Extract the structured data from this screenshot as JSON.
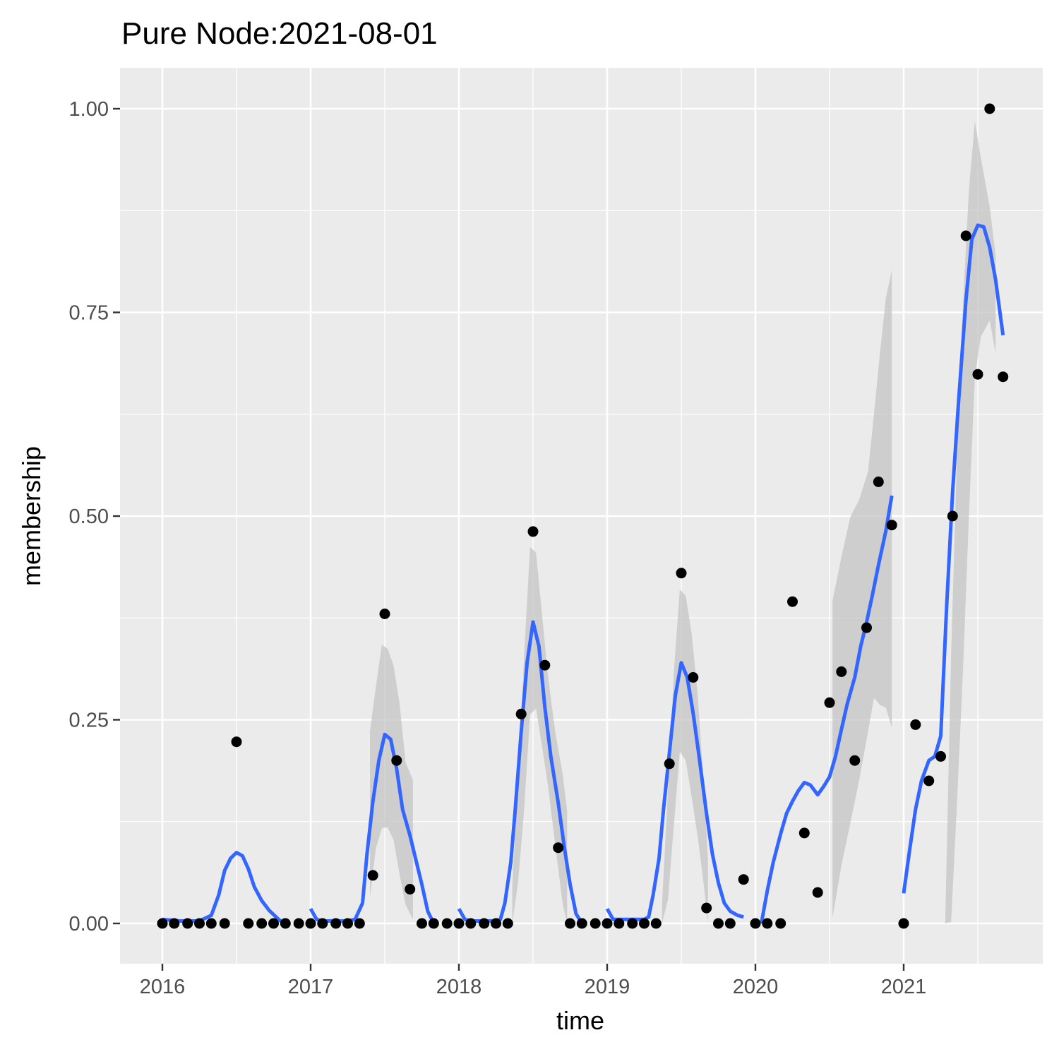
{
  "chart_data": {
    "type": "scatter",
    "title": "Pure Node:2021-08-01",
    "xlabel": "time",
    "ylabel": "membership",
    "xlim": [
      2016,
      2021.75
    ],
    "ylim": [
      0,
      1.0
    ],
    "x_ticks": [
      "2016",
      "2017",
      "2018",
      "2019",
      "2020",
      "2021"
    ],
    "y_ticks": [
      "0.00",
      "0.25",
      "0.50",
      "0.75",
      "1.00"
    ],
    "grid": true,
    "colors": {
      "panel": "#ebebeb",
      "grid": "#ffffff",
      "points": "#000000",
      "smooth": "#3366ff",
      "ribbon": "#c4c4c4"
    },
    "points": [
      [
        2016.0,
        0
      ],
      [
        2016.08,
        0
      ],
      [
        2016.17,
        0
      ],
      [
        2016.25,
        0
      ],
      [
        2016.33,
        0
      ],
      [
        2016.42,
        0
      ],
      [
        2016.5,
        0.223
      ],
      [
        2016.58,
        0
      ],
      [
        2016.67,
        0
      ],
      [
        2016.75,
        0
      ],
      [
        2016.83,
        0
      ],
      [
        2016.92,
        0
      ],
      [
        2017.0,
        0
      ],
      [
        2017.08,
        0
      ],
      [
        2017.17,
        0
      ],
      [
        2017.25,
        0
      ],
      [
        2017.33,
        0
      ],
      [
        2017.42,
        0.059
      ],
      [
        2017.5,
        0.38
      ],
      [
        2017.58,
        0.2
      ],
      [
        2017.67,
        0.042
      ],
      [
        2017.75,
        0
      ],
      [
        2017.83,
        0
      ],
      [
        2017.92,
        0
      ],
      [
        2018.0,
        0
      ],
      [
        2018.08,
        0
      ],
      [
        2018.17,
        0
      ],
      [
        2018.25,
        0
      ],
      [
        2018.33,
        0
      ],
      [
        2018.42,
        0.257
      ],
      [
        2018.5,
        0.481
      ],
      [
        2018.58,
        0.317
      ],
      [
        2018.67,
        0.093
      ],
      [
        2018.75,
        0
      ],
      [
        2018.83,
        0
      ],
      [
        2018.92,
        0
      ],
      [
        2019.0,
        0
      ],
      [
        2019.08,
        0
      ],
      [
        2019.17,
        0
      ],
      [
        2019.25,
        0
      ],
      [
        2019.33,
        0
      ],
      [
        2019.42,
        0.196
      ],
      [
        2019.5,
        0.43
      ],
      [
        2019.58,
        0.302
      ],
      [
        2019.67,
        0.019
      ],
      [
        2019.75,
        0
      ],
      [
        2019.83,
        0
      ],
      [
        2019.92,
        0.054
      ],
      [
        2020.0,
        0
      ],
      [
        2020.08,
        0
      ],
      [
        2020.17,
        0
      ],
      [
        2020.25,
        0.395
      ],
      [
        2020.33,
        0.111
      ],
      [
        2020.42,
        0.038
      ],
      [
        2020.5,
        0.271
      ],
      [
        2020.58,
        0.309
      ],
      [
        2020.67,
        0.2
      ],
      [
        2020.75,
        0.363
      ],
      [
        2020.83,
        0.542
      ],
      [
        2020.92,
        0.489
      ],
      [
        2021.0,
        0
      ],
      [
        2021.08,
        0.244
      ],
      [
        2021.17,
        0.175
      ],
      [
        2021.25,
        0.205
      ],
      [
        2021.33,
        0.5
      ],
      [
        2021.42,
        0.844
      ],
      [
        2021.5,
        0.674
      ],
      [
        2021.58,
        1.0
      ],
      [
        2021.67,
        0.671
      ]
    ],
    "smooth_segments": [
      {
        "x": [
          2016.0,
          2016.12,
          2016.25,
          2016.33,
          2016.38,
          2016.42,
          2016.46,
          2016.5,
          2016.54,
          2016.58,
          2016.62,
          2016.67,
          2016.72,
          2016.79,
          2016.83
        ],
        "y": [
          0.005,
          0.003,
          0.003,
          0.01,
          0.035,
          0.065,
          0.08,
          0.087,
          0.083,
          0.067,
          0.045,
          0.028,
          0.016,
          0.004,
          0.0
        ]
      },
      {
        "x": [
          2017.0,
          2017.04,
          2017.08,
          2017.17,
          2017.25,
          2017.3,
          2017.35,
          2017.38,
          2017.42,
          2017.46,
          2017.5,
          2017.54,
          2017.58,
          2017.62,
          2017.67,
          2017.71,
          2017.75,
          2017.79,
          2017.83
        ],
        "y": [
          0.018,
          0.005,
          0.003,
          0.003,
          0.003,
          0.005,
          0.025,
          0.085,
          0.15,
          0.2,
          0.232,
          0.226,
          0.19,
          0.14,
          0.108,
          0.078,
          0.048,
          0.015,
          0.0
        ]
      },
      {
        "x": [
          2018.0,
          2018.04,
          2018.08,
          2018.17,
          2018.25,
          2018.28,
          2018.31,
          2018.35,
          2018.38,
          2018.42,
          2018.46,
          2018.5,
          2018.54,
          2018.58,
          2018.62,
          2018.67,
          2018.71,
          2018.75,
          2018.79,
          2018.83
        ],
        "y": [
          0.018,
          0.005,
          0.003,
          0.003,
          0.003,
          0.005,
          0.025,
          0.075,
          0.14,
          0.235,
          0.32,
          0.37,
          0.34,
          0.265,
          0.205,
          0.148,
          0.095,
          0.048,
          0.012,
          0.0
        ]
      },
      {
        "x": [
          2019.0,
          2019.04,
          2019.08,
          2019.17,
          2019.25,
          2019.28,
          2019.31,
          2019.35,
          2019.38,
          2019.42,
          2019.46,
          2019.5,
          2019.54,
          2019.58,
          2019.62,
          2019.67,
          2019.71,
          2019.75,
          2019.79,
          2019.83,
          2019.88,
          2019.92
        ],
        "y": [
          0.018,
          0.005,
          0.005,
          0.005,
          0.005,
          0.008,
          0.035,
          0.08,
          0.14,
          0.21,
          0.28,
          0.32,
          0.302,
          0.258,
          0.205,
          0.135,
          0.085,
          0.05,
          0.025,
          0.015,
          0.01,
          0.008
        ]
      },
      {
        "x": [
          2020.04,
          2020.08,
          2020.12,
          2020.17,
          2020.21,
          2020.25,
          2020.29,
          2020.33,
          2020.37,
          2020.42,
          2020.46,
          2020.5,
          2020.54,
          2020.58,
          2020.62,
          2020.67,
          2020.71,
          2020.75,
          2020.79,
          2020.83,
          2020.88,
          2020.92
        ],
        "y": [
          0.0,
          0.04,
          0.075,
          0.11,
          0.135,
          0.15,
          0.163,
          0.173,
          0.17,
          0.158,
          0.168,
          0.18,
          0.205,
          0.238,
          0.27,
          0.302,
          0.34,
          0.37,
          0.404,
          0.44,
          0.482,
          0.525
        ]
      },
      {
        "x": [
          2021.0,
          2021.04,
          2021.08,
          2021.12,
          2021.17,
          2021.21,
          2021.25,
          2021.29,
          2021.33,
          2021.37,
          2021.42,
          2021.46,
          2021.5,
          2021.54,
          2021.58,
          2021.62,
          2021.67
        ],
        "y": [
          0.037,
          0.09,
          0.14,
          0.175,
          0.2,
          0.205,
          0.23,
          0.39,
          0.53,
          0.64,
          0.765,
          0.84,
          0.857,
          0.855,
          0.83,
          0.79,
          0.722
        ]
      }
    ],
    "ribbon_segments": [
      {
        "x": [
          2017.4,
          2017.44,
          2017.48,
          2017.52,
          2017.56,
          2017.6,
          2017.64,
          2017.69
        ],
        "upper": [
          0.236,
          0.29,
          0.342,
          0.337,
          0.316,
          0.27,
          0.198,
          0.176
        ],
        "lower": [
          0.032,
          0.092,
          0.117,
          0.118,
          0.102,
          0.06,
          0.023,
          0.005
        ]
      },
      {
        "x": [
          2018.36,
          2018.4,
          2018.44,
          2018.48,
          2018.52,
          2018.56,
          2018.6,
          2018.65,
          2018.7,
          2018.73
        ],
        "upper": [
          0.048,
          0.175,
          0.33,
          0.462,
          0.455,
          0.381,
          0.305,
          0.235,
          0.183,
          0.138
        ],
        "lower": [
          0.0,
          0.052,
          0.14,
          0.256,
          0.264,
          0.218,
          0.17,
          0.096,
          0.024,
          0.0
        ]
      },
      {
        "x": [
          2019.37,
          2019.41,
          2019.45,
          2019.49,
          2019.53,
          2019.57,
          2019.61,
          2019.65,
          2019.68
        ],
        "upper": [
          0.023,
          0.164,
          0.309,
          0.41,
          0.402,
          0.356,
          0.282,
          0.174,
          0.079
        ],
        "lower": [
          0.0,
          0.029,
          0.121,
          0.211,
          0.2,
          0.155,
          0.107,
          0.05,
          0.0
        ]
      },
      {
        "x": [
          2020.52,
          2020.58,
          2020.64,
          2020.7,
          2020.76,
          2020.8,
          2020.84,
          2020.88,
          2020.92
        ],
        "upper": [
          0.396,
          0.45,
          0.499,
          0.52,
          0.555,
          0.626,
          0.7,
          0.768,
          0.802
        ],
        "lower": [
          0.007,
          0.071,
          0.123,
          0.176,
          0.236,
          0.277,
          0.268,
          0.265,
          0.24
        ]
      },
      {
        "x": [
          2021.28,
          2021.32,
          2021.36,
          2021.4,
          2021.44,
          2021.48,
          2021.52,
          2021.58,
          2021.62
        ],
        "upper": [
          0.0,
          0.33,
          0.58,
          0.76,
          0.9,
          0.985,
          0.94,
          0.88,
          0.82
        ],
        "lower": [
          0.0,
          0.002,
          0.15,
          0.31,
          0.5,
          0.67,
          0.72,
          0.74,
          0.7
        ]
      }
    ]
  }
}
